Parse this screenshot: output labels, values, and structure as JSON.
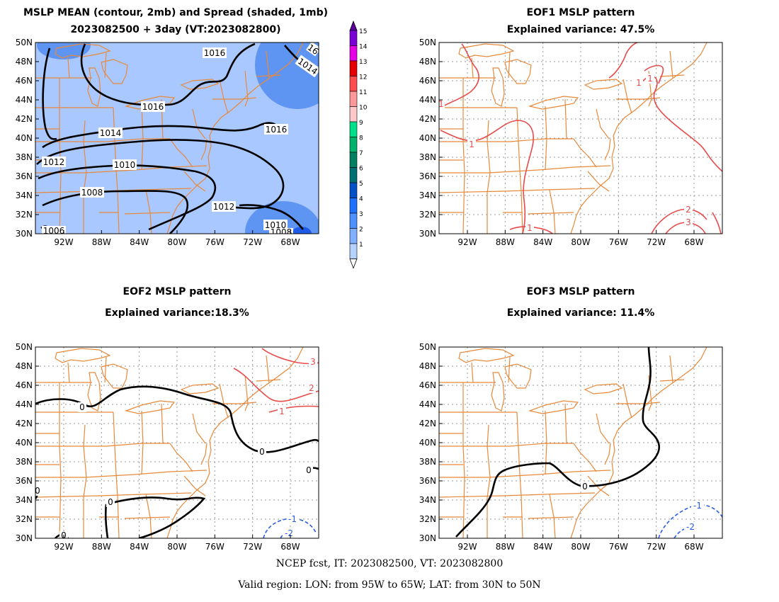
{
  "panel1": {
    "title_line1": "MSLP MEAN (contour, 2mb) and Spread (shaded, 1mb)",
    "title_line2": "2023082500 + 3day (VT:2023082800)",
    "contour_labels": [
      "1016",
      "1016",
      "1014",
      "1012",
      "1010",
      "1008",
      "1006",
      "1016",
      "1014",
      "1012",
      "1010",
      "1008",
      "16"
    ]
  },
  "panel2": {
    "title_line1": "EOF1 MSLP pattern",
    "title_line2": "Explained variance: 47.5%",
    "contour_labels": [
      "1",
      "1",
      "1",
      "1",
      "1",
      "2",
      "3"
    ]
  },
  "panel3": {
    "title_line1": "EOF2 MSLP pattern",
    "title_line2": "Explained variance:18.3%",
    "contour_labels": [
      "0",
      "0",
      "0",
      "0",
      "0",
      "0",
      "1",
      "2",
      "3",
      "-1",
      "-2"
    ]
  },
  "panel4": {
    "title_line1": "EOF3 MSLP pattern",
    "title_line2": "Explained variance: 11.4%",
    "contour_labels": [
      "0",
      "-1",
      "-2"
    ]
  },
  "axes": {
    "lat_labels": [
      "50N",
      "48N",
      "46N",
      "44N",
      "42N",
      "40N",
      "38N",
      "36N",
      "34N",
      "32N",
      "30N"
    ],
    "lon_labels": [
      "92W",
      "88W",
      "84W",
      "80W",
      "76W",
      "72W",
      "68W"
    ]
  },
  "colorbar": {
    "labels": [
      "15",
      "14",
      "13",
      "12",
      "11",
      "10",
      "9",
      "8",
      "7",
      "6",
      "5",
      "4",
      "3",
      "2",
      "1"
    ],
    "colors": [
      "#7a00d6",
      "#e600e6",
      "#e60000",
      "#ff4d4d",
      "#ff9999",
      "#ffc8c8",
      "#00e08a",
      "#00b36b",
      "#008060",
      "#006e75",
      "#0050c8",
      "#1e70ff",
      "#4d90ff",
      "#80b0ff",
      "#b4d2ff"
    ]
  },
  "footer": {
    "line1": "NCEP fcst, IT: 2023082500, VT: 2023082800",
    "line2": "Valid region: LON: from 95W to 65W; LAT: from 30N to 50N"
  }
}
